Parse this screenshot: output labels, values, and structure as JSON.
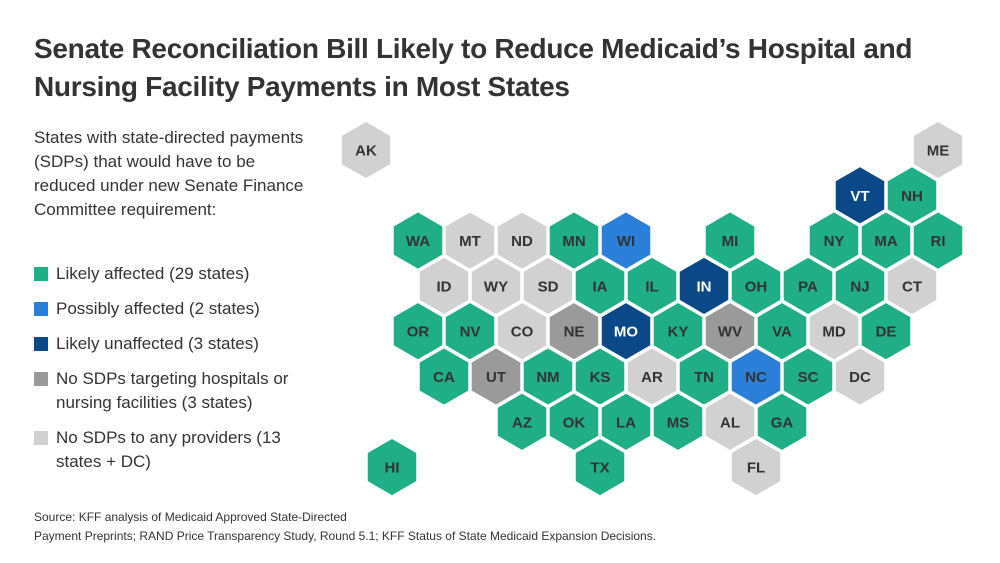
{
  "title": "Senate Reconciliation Bill Likely to Reduce Medicaid’s Hospital and Nursing Facility Payments in Most States",
  "subtitle": "States with state-directed payments (SDPs) that would have to be reduced under new Senate Finance Committee requirement:",
  "legend": [
    {
      "key": "likely_affected",
      "label": "Likely affected (29 states)",
      "color": "#1fae86"
    },
    {
      "key": "possibly_affected",
      "label": "Possibly affected (2 states)",
      "color": "#2a80d8"
    },
    {
      "key": "likely_unaffected",
      "label": "Likely unaffected (3 states)",
      "color": "#0b4887"
    },
    {
      "key": "no_sdp_hospital_nursing",
      "label": "No SDPs targeting hospitals or nursing facilities (3 states)",
      "color": "#9a9a9a"
    },
    {
      "key": "no_sdp_any",
      "label": "No SDPs to any providers (13 states + DC)",
      "color": "#d1d1d1"
    }
  ],
  "source": [
    "Source: KFF analysis of Medicaid Approved State-Directed",
    "Payment Preprints; RAND Price Transparency Study, Round 5.1; KFF Status of State Medicaid Expansion Decisions."
  ],
  "chart_data": {
    "type": "hex tile map",
    "states": [
      {
        "state": "AK",
        "row": 0,
        "col": 1,
        "category": "no_sdp_any"
      },
      {
        "state": "ME",
        "row": 0,
        "col": 23,
        "category": "no_sdp_any"
      },
      {
        "state": "VT",
        "row": 1,
        "col": 20,
        "category": "likely_unaffected"
      },
      {
        "state": "NH",
        "row": 1,
        "col": 22,
        "category": "likely_affected"
      },
      {
        "state": "WA",
        "row": 2,
        "col": 3,
        "category": "likely_affected"
      },
      {
        "state": "MT",
        "row": 2,
        "col": 5,
        "category": "no_sdp_any"
      },
      {
        "state": "ND",
        "row": 2,
        "col": 7,
        "category": "no_sdp_any"
      },
      {
        "state": "MN",
        "row": 2,
        "col": 9,
        "category": "likely_affected"
      },
      {
        "state": "WI",
        "row": 2,
        "col": 11,
        "category": "possibly_affected"
      },
      {
        "state": "MI",
        "row": 2,
        "col": 15,
        "category": "likely_affected"
      },
      {
        "state": "NY",
        "row": 2,
        "col": 19,
        "category": "likely_affected"
      },
      {
        "state": "MA",
        "row": 2,
        "col": 21,
        "category": "likely_affected"
      },
      {
        "state": "RI",
        "row": 2,
        "col": 23,
        "category": "likely_affected"
      },
      {
        "state": "ID",
        "row": 3,
        "col": 4,
        "category": "no_sdp_any"
      },
      {
        "state": "WY",
        "row": 3,
        "col": 6,
        "category": "no_sdp_any"
      },
      {
        "state": "SD",
        "row": 3,
        "col": 8,
        "category": "no_sdp_any"
      },
      {
        "state": "IA",
        "row": 3,
        "col": 10,
        "category": "likely_affected"
      },
      {
        "state": "IL",
        "row": 3,
        "col": 12,
        "category": "likely_affected"
      },
      {
        "state": "IN",
        "row": 3,
        "col": 14,
        "category": "likely_unaffected"
      },
      {
        "state": "OH",
        "row": 3,
        "col": 16,
        "category": "likely_affected"
      },
      {
        "state": "PA",
        "row": 3,
        "col": 18,
        "category": "likely_affected"
      },
      {
        "state": "NJ",
        "row": 3,
        "col": 20,
        "category": "likely_affected"
      },
      {
        "state": "CT",
        "row": 3,
        "col": 22,
        "category": "no_sdp_any"
      },
      {
        "state": "OR",
        "row": 4,
        "col": 3,
        "category": "likely_affected"
      },
      {
        "state": "NV",
        "row": 4,
        "col": 5,
        "category": "likely_affected"
      },
      {
        "state": "CO",
        "row": 4,
        "col": 7,
        "category": "no_sdp_any"
      },
      {
        "state": "NE",
        "row": 4,
        "col": 9,
        "category": "no_sdp_hospital_nursing"
      },
      {
        "state": "MO",
        "row": 4,
        "col": 11,
        "category": "likely_unaffected"
      },
      {
        "state": "KY",
        "row": 4,
        "col": 13,
        "category": "likely_affected"
      },
      {
        "state": "WV",
        "row": 4,
        "col": 15,
        "category": "no_sdp_hospital_nursing"
      },
      {
        "state": "VA",
        "row": 4,
        "col": 17,
        "category": "likely_affected"
      },
      {
        "state": "MD",
        "row": 4,
        "col": 19,
        "category": "no_sdp_any"
      },
      {
        "state": "DE",
        "row": 4,
        "col": 21,
        "category": "likely_affected"
      },
      {
        "state": "CA",
        "row": 5,
        "col": 4,
        "category": "likely_affected"
      },
      {
        "state": "UT",
        "row": 5,
        "col": 6,
        "category": "no_sdp_hospital_nursing"
      },
      {
        "state": "NM",
        "row": 5,
        "col": 8,
        "category": "likely_affected"
      },
      {
        "state": "KS",
        "row": 5,
        "col": 10,
        "category": "likely_affected"
      },
      {
        "state": "AR",
        "row": 5,
        "col": 12,
        "category": "no_sdp_any"
      },
      {
        "state": "TN",
        "row": 5,
        "col": 14,
        "category": "likely_affected"
      },
      {
        "state": "NC",
        "row": 5,
        "col": 16,
        "category": "possibly_affected"
      },
      {
        "state": "SC",
        "row": 5,
        "col": 18,
        "category": "likely_affected"
      },
      {
        "state": "DC",
        "row": 5,
        "col": 20,
        "category": "no_sdp_any"
      },
      {
        "state": "AZ",
        "row": 6,
        "col": 7,
        "category": "likely_affected"
      },
      {
        "state": "OK",
        "row": 6,
        "col": 9,
        "category": "likely_affected"
      },
      {
        "state": "LA",
        "row": 6,
        "col": 11,
        "category": "likely_affected"
      },
      {
        "state": "MS",
        "row": 6,
        "col": 13,
        "category": "likely_affected"
      },
      {
        "state": "AL",
        "row": 6,
        "col": 15,
        "category": "no_sdp_any"
      },
      {
        "state": "GA",
        "row": 6,
        "col": 17,
        "category": "likely_affected"
      },
      {
        "state": "HI",
        "row": 7,
        "col": 2,
        "category": "likely_affected"
      },
      {
        "state": "TX",
        "row": 7,
        "col": 10,
        "category": "likely_affected"
      },
      {
        "state": "FL",
        "row": 7,
        "col": 16,
        "category": "no_sdp_any"
      }
    ]
  }
}
